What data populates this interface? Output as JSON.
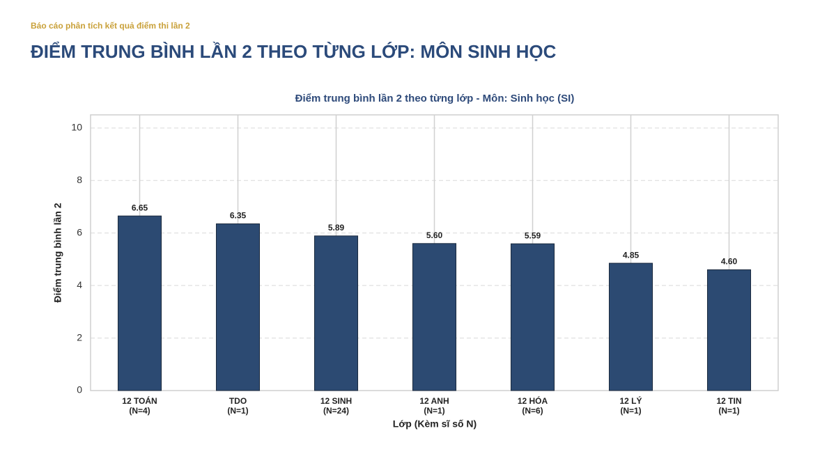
{
  "header": {
    "subtitle": "Báo cáo phân tích kết quả điểm thi lần 2",
    "title": "ĐIỂM TRUNG BÌNH LẦN 2 THEO TỪNG LỚP: MÔN SINH HỌC"
  },
  "chart_data": {
    "type": "bar",
    "title": "Điểm trung bình lần 2 theo từng lớp - Môn: Sinh học (SI)",
    "x_label": "Lớp (Kèm sĩ số N)",
    "y_label": "Điểm trung bình lần 2",
    "categories": [
      "12 TOÁN",
      "TDO",
      "12 SINH",
      "12 ANH",
      "12 HÓA",
      "12 LÝ",
      "12 TIN"
    ],
    "sample_sizes": [
      "(N=4)",
      "(N=1)",
      "(N=24)",
      "(N=1)",
      "(N=6)",
      "(N=1)",
      "(N=1)"
    ],
    "values": [
      6.65,
      6.35,
      5.89,
      5.6,
      5.59,
      4.85,
      4.6
    ],
    "value_labels": [
      "6.65",
      "6.35",
      "5.89",
      "5.60",
      "5.59",
      "4.85",
      "4.60"
    ],
    "color": "#2c4a72",
    "ylim": [
      0,
      10.5
    ],
    "yticks": [
      0,
      2,
      4,
      6,
      8,
      10
    ],
    "grid": true
  }
}
